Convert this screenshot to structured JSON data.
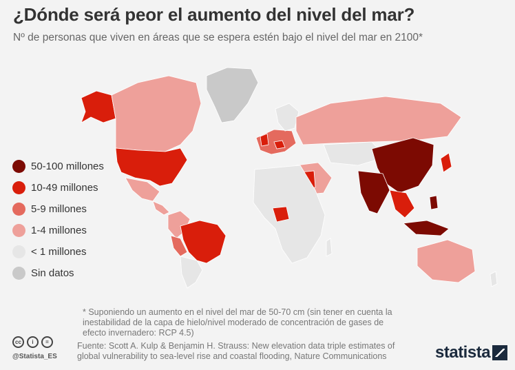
{
  "header": {
    "title": "¿Dónde será peor el aumento del nivel del mar?",
    "subtitle": "Nº de personas que viven en áreas que se espera estén bajo el nivel del mar en 2100*"
  },
  "legend": {
    "items": [
      {
        "label": "50-100 millones",
        "color": "#7c0a02"
      },
      {
        "label": "10-49 millones",
        "color": "#d91e0b"
      },
      {
        "label": "5-9 millones",
        "color": "#e46a5e"
      },
      {
        "label": "1-4 millones",
        "color": "#eea09a"
      },
      {
        "label": "< 1 millones",
        "color": "#e6e6e6"
      },
      {
        "label": "Sin datos",
        "color": "#c9c9c9"
      }
    ]
  },
  "footer": {
    "footnote": "* Suponiendo un aumento en el nivel del mar de 50-70 cm (sin tener en cuenta la inestabilidad de la capa de hielo/nivel moderado de concentración de gases de efecto invernadero: RCP 4.5)",
    "source": "Fuente: Scott A. Kulp & Benjamin H. Strauss: New elevation data triple estimates of global vulnerability to sea-level rise and coastal flooding, Nature Communications",
    "handle": "@Statista_ES",
    "brand": "statista"
  }
}
